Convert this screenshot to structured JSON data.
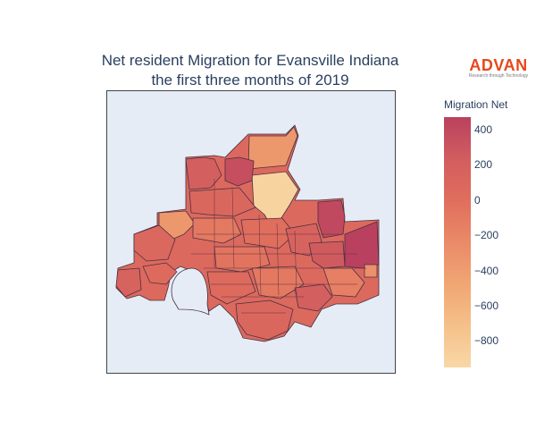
{
  "title": {
    "line1": "Net resident Migration for Evansville Indiana",
    "line2": "the first three months of 2019"
  },
  "logo": {
    "text": "ADVAN",
    "tagline": "Research through Technology",
    "color": "#e8471a"
  },
  "colorbar": {
    "title": "Migration Net",
    "min": -950,
    "max": 470,
    "ticks": [
      "400",
      "200",
      "0",
      "−200",
      "−400",
      "−600",
      "−800"
    ],
    "tick_values": [
      400,
      200,
      0,
      -200,
      -400,
      -600,
      -800
    ],
    "colors": [
      "#b9415f",
      "#d25d5f",
      "#e06e5d",
      "#ea8a68",
      "#f0a673",
      "#f5c08a",
      "#f8d8a6"
    ]
  },
  "map": {
    "background": "#e5ecf6",
    "regions": [
      {
        "id": "north-top",
        "value": -350
      },
      {
        "id": "north-center-light",
        "value": -900
      },
      {
        "id": "north-left-a",
        "value": 200
      },
      {
        "id": "north-left-b",
        "value": 350
      },
      {
        "id": "north-mid",
        "value": 100
      },
      {
        "id": "northeast-dark",
        "value": 400
      },
      {
        "id": "east-large",
        "value": 470
      },
      {
        "id": "west-orange",
        "value": -350
      },
      {
        "id": "west-low",
        "value": 80
      },
      {
        "id": "west-south",
        "value": 50
      },
      {
        "id": "far-west",
        "value": 150
      },
      {
        "id": "center-a",
        "value": -100
      },
      {
        "id": "center-b",
        "value": 0
      },
      {
        "id": "center-c",
        "value": 150
      },
      {
        "id": "center-d",
        "value": -50
      },
      {
        "id": "south-a",
        "value": 50
      },
      {
        "id": "south-b",
        "value": -100
      },
      {
        "id": "south-c",
        "value": 100
      },
      {
        "id": "southeast-a",
        "value": 200
      },
      {
        "id": "southeast-b",
        "value": -150
      },
      {
        "id": "east-small-orange",
        "value": -300
      },
      {
        "id": "east-mid",
        "value": 250
      }
    ]
  }
}
